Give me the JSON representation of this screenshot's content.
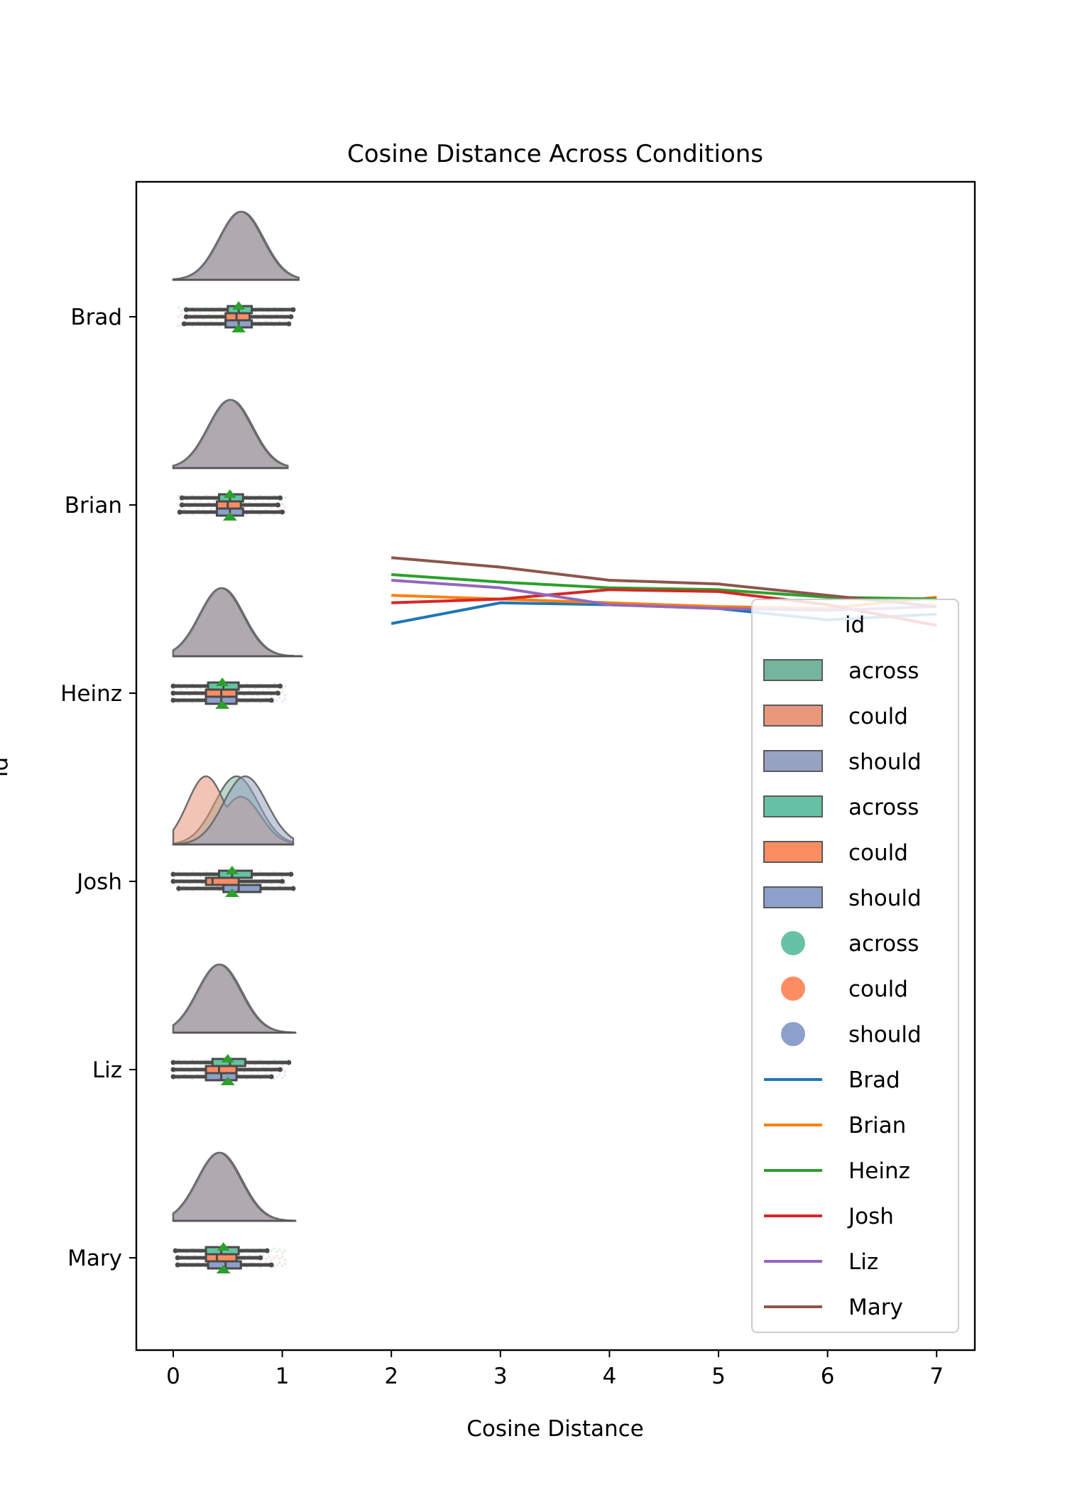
{
  "chart_data": {
    "type": "line",
    "title": "Cosine Distance Across Conditions",
    "xlabel": "Cosine Distance",
    "ylabel": "id",
    "xlim": [
      -0.35,
      7.35
    ],
    "xticks": [
      0,
      1,
      2,
      3,
      4,
      5,
      6,
      7
    ],
    "xtick_labels": [
      "0",
      "1",
      "2",
      "3",
      "4",
      "5",
      "6",
      "7"
    ],
    "categories": [
      "Brad",
      "Brian",
      "Heinz",
      "Josh",
      "Liz",
      "Mary"
    ],
    "legend": {
      "title": "id",
      "placement": "lower-right",
      "entries": [
        {
          "label": "across",
          "kind": "patch",
          "color": "#74b59b"
        },
        {
          "label": "could",
          "kind": "patch",
          "color": "#e9987a"
        },
        {
          "label": "should",
          "kind": "patch",
          "color": "#96a3c2"
        },
        {
          "label": "across",
          "kind": "patch",
          "color": "#66c2a5"
        },
        {
          "label": "could",
          "kind": "patch",
          "color": "#fc8d62"
        },
        {
          "label": "should",
          "kind": "patch",
          "color": "#8da0cb"
        },
        {
          "label": "across",
          "kind": "dot",
          "color": "#66c2a5"
        },
        {
          "label": "could",
          "kind": "dot",
          "color": "#fc8d62"
        },
        {
          "label": "should",
          "kind": "dot",
          "color": "#8da0cb"
        },
        {
          "label": "Brad",
          "kind": "line",
          "color": "#1f77b4"
        },
        {
          "label": "Brian",
          "kind": "line",
          "color": "#ff7f0e"
        },
        {
          "label": "Heinz",
          "kind": "line",
          "color": "#2ca02c"
        },
        {
          "label": "Josh",
          "kind": "line",
          "color": "#d62728"
        },
        {
          "label": "Liz",
          "kind": "line",
          "color": "#9467bd"
        },
        {
          "label": "Mary",
          "kind": "line",
          "color": "#8c564b"
        }
      ]
    },
    "conditions": [
      {
        "name": "across",
        "color": "#66c2a5"
      },
      {
        "name": "could",
        "color": "#fc8d62"
      },
      {
        "name": "should",
        "color": "#8da0cb"
      }
    ],
    "distributions": [
      {
        "id": "Brad",
        "kde_peak": 0.62,
        "kde_range": [
          0.0,
          1.15
        ],
        "boxes": [
          {
            "condition": "across",
            "q1": 0.5,
            "median": 0.6,
            "q3": 0.72,
            "whisker": [
              0.12,
              1.1
            ],
            "mean": 0.6
          },
          {
            "condition": "could",
            "q1": 0.48,
            "median": 0.58,
            "q3": 0.7,
            "whisker": [
              0.12,
              1.08
            ],
            "mean": 0.58
          },
          {
            "condition": "should",
            "q1": 0.48,
            "median": 0.6,
            "q3": 0.72,
            "whisker": [
              0.1,
              1.06
            ],
            "mean": 0.6
          }
        ]
      },
      {
        "id": "Brian",
        "kde_peak": 0.52,
        "kde_range": [
          0.0,
          1.05
        ],
        "boxes": [
          {
            "condition": "across",
            "q1": 0.42,
            "median": 0.52,
            "q3": 0.64,
            "whisker": [
              0.08,
              0.98
            ],
            "mean": 0.52
          },
          {
            "condition": "could",
            "q1": 0.4,
            "median": 0.5,
            "q3": 0.62,
            "whisker": [
              0.08,
              0.96
            ],
            "mean": 0.5
          },
          {
            "condition": "should",
            "q1": 0.4,
            "median": 0.52,
            "q3": 0.64,
            "whisker": [
              0.06,
              1.0
            ],
            "mean": 0.52
          }
        ]
      },
      {
        "id": "Heinz",
        "kde_peak": 0.44,
        "kde_range": [
          0.0,
          1.18
        ],
        "boxes": [
          {
            "condition": "across",
            "q1": 0.32,
            "median": 0.46,
            "q3": 0.6,
            "whisker": [
              0.0,
              0.98
            ],
            "mean": 0.45
          },
          {
            "condition": "could",
            "q1": 0.3,
            "median": 0.44,
            "q3": 0.58,
            "whisker": [
              0.0,
              0.96
            ],
            "mean": 0.44
          },
          {
            "condition": "should",
            "q1": 0.3,
            "median": 0.44,
            "q3": 0.58,
            "whisker": [
              0.0,
              0.9
            ],
            "mean": 0.43
          }
        ]
      },
      {
        "id": "Josh",
        "kde_peak": 0.62,
        "kde_range": [
          0.0,
          1.1
        ],
        "boxes": [
          {
            "condition": "across",
            "q1": 0.42,
            "median": 0.54,
            "q3": 0.72,
            "whisker": [
              0.0,
              1.08
            ],
            "mean": 0.54
          },
          {
            "condition": "could",
            "q1": 0.3,
            "median": 0.36,
            "q3": 0.6,
            "whisker": [
              0.0,
              1.0
            ],
            "mean": 0.4
          },
          {
            "condition": "should",
            "q1": 0.46,
            "median": 0.6,
            "q3": 0.8,
            "whisker": [
              0.05,
              1.1
            ],
            "mean": 0.6
          }
        ]
      },
      {
        "id": "Liz",
        "kde_peak": 0.42,
        "kde_range": [
          0.0,
          1.12
        ],
        "boxes": [
          {
            "condition": "across",
            "q1": 0.36,
            "median": 0.52,
            "q3": 0.66,
            "whisker": [
              0.0,
              1.06
            ],
            "mean": 0.5
          },
          {
            "condition": "could",
            "q1": 0.3,
            "median": 0.42,
            "q3": 0.58,
            "whisker": [
              0.0,
              0.98
            ],
            "mean": 0.44
          },
          {
            "condition": "should",
            "q1": 0.3,
            "median": 0.44,
            "q3": 0.58,
            "whisker": [
              0.0,
              0.9
            ],
            "mean": 0.44
          }
        ]
      },
      {
        "id": "Mary",
        "kde_peak": 0.42,
        "kde_range": [
          0.0,
          1.12
        ],
        "boxes": [
          {
            "condition": "across",
            "q1": 0.3,
            "median": 0.44,
            "q3": 0.6,
            "whisker": [
              0.02,
              0.86
            ],
            "mean": 0.46
          },
          {
            "condition": "could",
            "q1": 0.3,
            "median": 0.4,
            "q3": 0.58,
            "whisker": [
              0.04,
              0.8
            ],
            "mean": 0.44
          },
          {
            "condition": "should",
            "q1": 0.32,
            "median": 0.48,
            "q3": 0.62,
            "whisker": [
              0.04,
              0.9
            ],
            "mean": 0.48
          }
        ]
      }
    ],
    "lines": {
      "x": [
        2,
        3,
        4,
        5,
        6,
        7
      ],
      "series": [
        {
          "name": "Brad",
          "color": "#1f77b4",
          "values": [
            -1.63,
            -1.52,
            -1.53,
            -1.55,
            -1.61,
            -1.58
          ]
        },
        {
          "name": "Brian",
          "color": "#ff7f0e",
          "values": [
            -1.48,
            -1.5,
            -1.52,
            -1.54,
            -1.55,
            -1.49
          ]
        },
        {
          "name": "Heinz",
          "color": "#2ca02c",
          "values": [
            -1.37,
            -1.41,
            -1.44,
            -1.45,
            -1.49,
            -1.5
          ]
        },
        {
          "name": "Josh",
          "color": "#d62728",
          "values": [
            -1.52,
            -1.5,
            -1.45,
            -1.46,
            -1.53,
            -1.64
          ]
        },
        {
          "name": "Liz",
          "color": "#9467bd",
          "values": [
            -1.4,
            -1.44,
            -1.53,
            -1.55,
            -1.56,
            -1.54
          ]
        },
        {
          "name": "Mary",
          "color": "#8c564b",
          "values": [
            -1.28,
            -1.33,
            -1.4,
            -1.42,
            -1.48,
            -1.54
          ]
        }
      ]
    }
  }
}
